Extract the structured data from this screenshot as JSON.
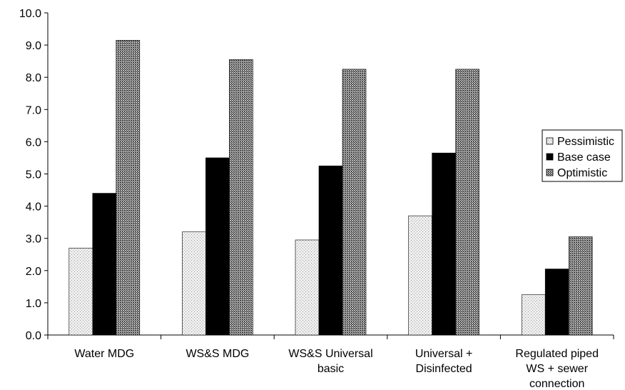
{
  "chart_data": {
    "type": "bar",
    "title": "",
    "xlabel": "",
    "ylabel": "",
    "ylim": [
      0,
      10
    ],
    "y_ticks": [
      "0.0",
      "1.0",
      "2.0",
      "3.0",
      "4.0",
      "5.0",
      "6.0",
      "7.0",
      "8.0",
      "9.0",
      "10.0"
    ],
    "grid": false,
    "legend_position": "right",
    "categories": [
      [
        "Water MDG"
      ],
      [
        "WS&S MDG"
      ],
      [
        "WS&S Universal",
        "basic"
      ],
      [
        "Universal +",
        "Disinfected"
      ],
      [
        "Regulated piped",
        "WS + sewer",
        "connection"
      ]
    ],
    "series": [
      {
        "name": "Pessimistic",
        "values": [
          2.7,
          3.2,
          2.95,
          3.7,
          1.25
        ],
        "fill": "light-dots",
        "color": "#e4e4e4"
      },
      {
        "name": "Base case",
        "values": [
          4.4,
          5.5,
          5.25,
          5.65,
          2.05
        ],
        "fill": "solid",
        "color": "#000000"
      },
      {
        "name": "Optimistic",
        "values": [
          9.15,
          8.55,
          8.25,
          8.25,
          3.05
        ],
        "fill": "dark-checker",
        "color": "#8c8c8c"
      }
    ]
  }
}
